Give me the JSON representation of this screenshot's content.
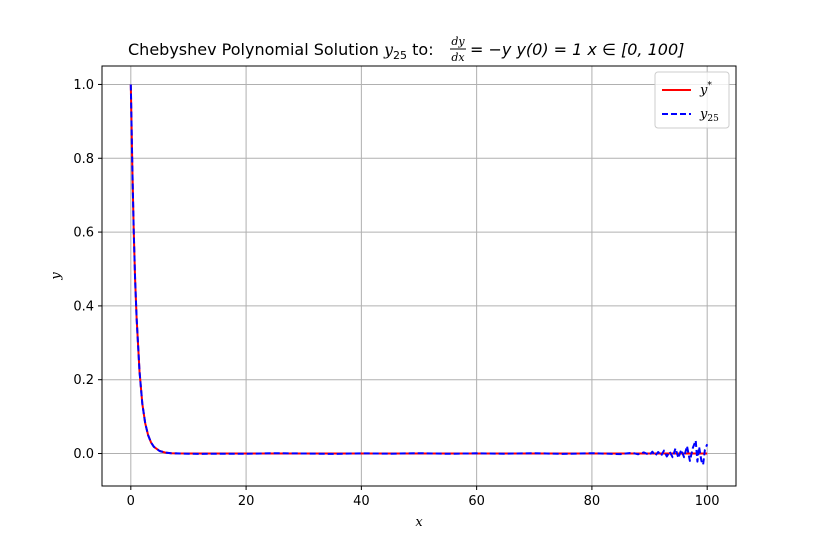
{
  "chart_data": {
    "type": "line",
    "title": {
      "prefix": "Chebyshev Polynomial Solution ",
      "y_sym": "y",
      "y_sub": "25",
      "mid": " to: ",
      "frac_num": "dy",
      "frac_den": "dx",
      "equation": "= −y   y(0) = 1   x ∈ [0, 100]"
    },
    "xlabel": "x",
    "ylabel": "y",
    "xlim": [
      -5,
      105
    ],
    "ylim": [
      -0.088,
      1.05
    ],
    "xticks": [
      0,
      20,
      40,
      60,
      80,
      100
    ],
    "xtick_labels": [
      "0",
      "20",
      "40",
      "60",
      "80",
      "100"
    ],
    "yticks": [
      0.0,
      0.2,
      0.4,
      0.6,
      0.8,
      1.0
    ],
    "ytick_labels": [
      "0.0",
      "0.2",
      "0.4",
      "0.6",
      "0.8",
      "1.0"
    ],
    "grid": true,
    "legend": {
      "position": "top-right",
      "entries": [
        {
          "symbol": "y",
          "sup": "*",
          "sub": ""
        },
        {
          "symbol": "y",
          "sup": "",
          "sub": "25"
        }
      ]
    },
    "series": [
      {
        "color": "#ff0000",
        "style": "solid",
        "x": [
          0,
          0.25,
          0.5,
          0.75,
          1,
          1.5,
          2,
          2.5,
          3,
          3.5,
          4,
          5,
          6,
          7,
          8,
          10,
          15,
          20,
          30,
          40,
          50,
          60,
          70,
          80,
          90,
          100
        ],
        "y": [
          1.0,
          0.7788,
          0.6065,
          0.4724,
          0.3679,
          0.2231,
          0.1353,
          0.0821,
          0.0498,
          0.0302,
          0.0183,
          0.0067,
          0.0025,
          0.0009,
          0.0003,
          0.0,
          0.0,
          0.0,
          0.0,
          0.0,
          0.0,
          0.0,
          0.0,
          0.0,
          0.0,
          0.0
        ]
      },
      {
        "color": "#0000ff",
        "style": "dashed",
        "x": [
          0,
          0.25,
          0.5,
          0.75,
          1,
          1.5,
          2,
          2.5,
          3,
          3.5,
          4,
          5,
          6,
          7,
          8,
          10,
          12,
          15,
          20,
          25,
          30,
          35,
          40,
          45,
          50,
          55,
          60,
          65,
          70,
          75,
          80,
          85,
          87,
          88,
          89,
          90,
          90.5,
          91,
          91.5,
          92,
          92.5,
          93,
          93.5,
          94,
          94.5,
          95,
          95.5,
          96,
          96.5,
          97,
          97.5,
          98,
          98.3,
          98.6,
          99,
          99.3,
          99.6,
          100
        ],
        "y": [
          1.0,
          0.7788,
          0.6065,
          0.4724,
          0.3679,
          0.2231,
          0.1353,
          0.0821,
          0.0498,
          0.0302,
          0.0183,
          0.0067,
          0.0025,
          0.0009,
          0.0003,
          -0.0005,
          -0.001,
          -0.0005,
          -0.0008,
          0.001,
          0.0,
          -0.001,
          0.0005,
          -0.0005,
          0.0008,
          -0.0008,
          0.0005,
          -0.0005,
          0.0008,
          -0.001,
          0.001,
          -0.0015,
          0.002,
          -0.002,
          0.003,
          -0.004,
          0.005,
          -0.006,
          0.004,
          -0.006,
          0.008,
          -0.008,
          0.005,
          -0.01,
          0.014,
          -0.012,
          0.01,
          -0.01,
          0.02,
          -0.02,
          0.015,
          0.035,
          -0.022,
          0.018,
          -0.02,
          -0.03,
          0.01,
          0.025
        ]
      }
    ]
  }
}
